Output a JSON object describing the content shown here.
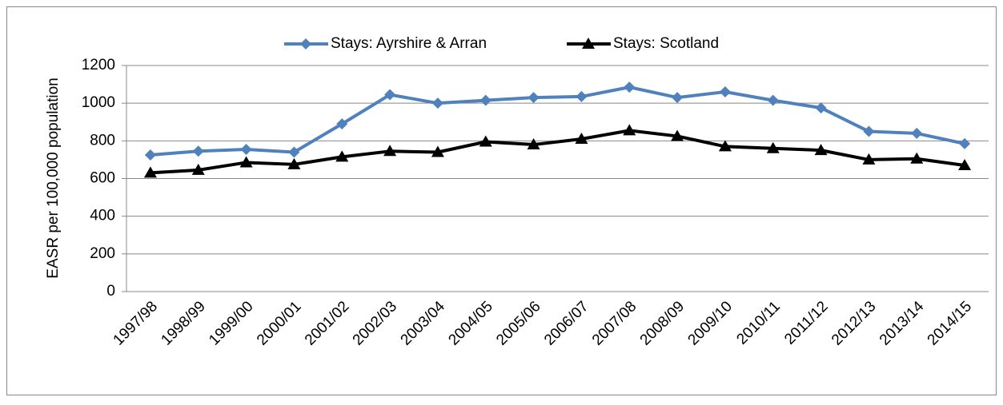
{
  "chart_data": {
    "type": "line",
    "y_label": "EASR per 100,000 population",
    "categories": [
      "1997/98",
      "1998/99",
      "1999/00",
      "2000/01",
      "2001/02",
      "2002/03",
      "2003/04",
      "2004/05",
      "2005/06",
      "2006/07",
      "2007/08",
      "2008/09",
      "2009/10",
      "2010/11",
      "2011/12",
      "2012/13",
      "2013/14",
      "2014/15"
    ],
    "series": [
      {
        "name": "Stays: Ayrshire & Arran",
        "color": "#4f81bd",
        "marker": "diamond",
        "values": [
          725,
          745,
          755,
          740,
          890,
          1045,
          1000,
          1015,
          1030,
          1035,
          1085,
          1030,
          1060,
          1015,
          975,
          850,
          840,
          785
        ]
      },
      {
        "name": "Stays: Scotland",
        "color": "#000000",
        "marker": "triangle",
        "values": [
          630,
          645,
          685,
          675,
          715,
          745,
          740,
          795,
          780,
          810,
          855,
          825,
          770,
          760,
          750,
          700,
          705,
          670
        ]
      }
    ],
    "ylim": [
      0,
      1200
    ],
    "yticks": [
      0,
      200,
      400,
      600,
      800,
      1000,
      1200
    ],
    "grid": true,
    "legend": "top"
  }
}
